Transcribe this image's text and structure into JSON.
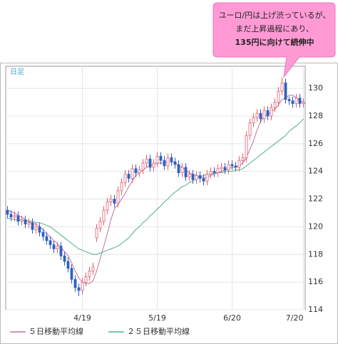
{
  "chart_data": {
    "type": "candlestick",
    "period_label": "日足",
    "annotation": [
      "ユーロ/円は上げ渋っているが、",
      "まだ上昇過程にあり、",
      "135円に向けて続伸中"
    ],
    "categories": [
      null,
      null,
      null,
      null,
      null,
      null,
      null,
      null,
      null,
      null,
      null,
      null,
      null,
      null,
      null,
      null,
      null,
      null,
      null,
      null,
      null,
      "4/19",
      null,
      null,
      null,
      null,
      null,
      null,
      null,
      null,
      null,
      null,
      null,
      null,
      null,
      null,
      null,
      null,
      null,
      null,
      null,
      null,
      "5/19",
      null,
      null,
      null,
      null,
      null,
      null,
      null,
      null,
      null,
      null,
      null,
      null,
      null,
      null,
      null,
      null,
      null,
      null,
      null,
      null,
      "6/20",
      null,
      null,
      null,
      null,
      null,
      null,
      null,
      null,
      null,
      null,
      null,
      null,
      null,
      null,
      null,
      null,
      null,
      null,
      null,
      "7/20"
    ],
    "open": [
      121.2,
      120.9,
      120.7,
      120.8,
      120.4,
      120.5,
      120.2,
      120.3,
      119.8,
      120.0,
      119.6,
      119.3,
      119.0,
      118.7,
      118.4,
      118.6,
      117.9,
      117.5,
      117.0,
      116.2,
      115.6,
      115.4,
      116.0,
      116.4,
      116.8,
      119.2,
      119.9,
      120.4,
      121.2,
      121.8,
      122.0,
      121.7,
      122.6,
      123.2,
      123.8,
      123.5,
      124.2,
      123.9,
      124.1,
      124.6,
      124.9,
      124.3,
      124.6,
      125.1,
      124.8,
      124.4,
      125.0,
      124.7,
      124.5,
      123.9,
      124.3,
      123.6,
      123.8,
      123.4,
      123.7,
      123.5,
      123.3,
      123.8,
      124.0,
      123.9,
      124.2,
      124.3,
      124.1,
      124.5,
      124.4,
      124.3,
      124.8,
      125.0,
      126.6,
      127.5,
      127.9,
      128.2,
      127.8,
      128.4,
      128.0,
      128.6,
      129.0,
      129.8,
      130.4,
      129.2,
      129.1,
      128.9,
      129.3,
      128.9
    ],
    "high": [
      121.5,
      121.2,
      121.1,
      121.1,
      120.8,
      120.8,
      120.6,
      120.6,
      120.3,
      120.3,
      119.9,
      119.6,
      119.3,
      119.0,
      118.9,
      118.9,
      118.2,
      117.8,
      117.3,
      116.5,
      115.9,
      116.3,
      116.7,
      117.1,
      117.4,
      120.2,
      120.7,
      121.5,
      122.1,
      122.3,
      122.3,
      122.9,
      123.5,
      124.1,
      124.1,
      124.5,
      124.5,
      124.4,
      124.9,
      125.2,
      125.2,
      124.9,
      125.4,
      125.4,
      125.1,
      125.3,
      125.3,
      125.0,
      124.8,
      124.6,
      124.6,
      124.1,
      124.1,
      124.0,
      124.0,
      123.8,
      124.1,
      124.3,
      124.3,
      124.5,
      124.6,
      124.6,
      124.8,
      124.8,
      124.7,
      125.1,
      125.3,
      126.9,
      127.8,
      128.2,
      128.5,
      128.5,
      128.7,
      128.7,
      128.9,
      129.3,
      130.1,
      130.8,
      130.7,
      129.4,
      129.4,
      129.6,
      129.6,
      129.3
    ],
    "low": [
      120.6,
      120.4,
      120.4,
      120.1,
      120.1,
      119.9,
      119.9,
      119.5,
      119.5,
      119.3,
      119.0,
      118.7,
      118.4,
      118.1,
      118.1,
      117.6,
      117.2,
      116.7,
      115.9,
      115.3,
      115.0,
      115.1,
      115.7,
      116.1,
      116.5,
      118.9,
      119.6,
      120.1,
      120.9,
      121.5,
      121.4,
      121.4,
      122.3,
      122.9,
      123.2,
      123.2,
      123.6,
      123.6,
      123.8,
      124.3,
      124.0,
      124.0,
      124.3,
      124.5,
      124.1,
      124.1,
      124.4,
      124.2,
      123.6,
      123.6,
      123.3,
      123.3,
      123.1,
      123.1,
      123.2,
      123.0,
      123.0,
      123.5,
      123.6,
      123.6,
      123.9,
      123.8,
      123.8,
      124.1,
      124.0,
      124.0,
      124.5,
      124.7,
      126.3,
      127.2,
      127.6,
      127.5,
      127.5,
      127.7,
      127.7,
      128.3,
      128.7,
      129.5,
      128.9,
      128.8,
      128.6,
      128.6,
      128.6,
      128.6
    ],
    "close": [
      120.9,
      120.7,
      120.8,
      120.4,
      120.5,
      120.2,
      120.3,
      119.8,
      120.0,
      119.6,
      119.3,
      119.0,
      118.7,
      118.4,
      118.6,
      117.9,
      117.5,
      117.0,
      116.2,
      115.6,
      115.4,
      116.0,
      116.4,
      116.8,
      117.1,
      119.9,
      120.4,
      121.2,
      121.8,
      122.0,
      121.7,
      122.6,
      123.2,
      123.8,
      123.5,
      124.2,
      123.9,
      124.1,
      124.6,
      124.9,
      124.3,
      124.6,
      125.1,
      124.8,
      124.4,
      125.0,
      124.7,
      124.5,
      123.9,
      124.3,
      123.6,
      123.8,
      123.4,
      123.7,
      123.5,
      123.3,
      123.8,
      124.0,
      123.9,
      124.2,
      124.3,
      124.1,
      124.5,
      124.4,
      124.3,
      124.8,
      125.0,
      126.6,
      127.5,
      127.9,
      128.2,
      127.8,
      128.4,
      128.0,
      128.6,
      129.0,
      129.8,
      130.4,
      129.2,
      129.1,
      128.9,
      129.3,
      128.9,
      129.0
    ],
    "up_color": "#e06070",
    "down_color": "#3060c0",
    "series": [
      {
        "name": "５日移動平均線",
        "color": "#c070a0",
        "values": [
          121.2,
          121.1,
          121.0,
          120.8,
          120.7,
          120.5,
          120.4,
          120.2,
          120.2,
          120.0,
          119.8,
          119.5,
          119.3,
          119.0,
          118.8,
          118.5,
          118.2,
          117.9,
          117.4,
          116.8,
          116.3,
          116.0,
          115.9,
          115.9,
          116.1,
          116.8,
          117.7,
          118.6,
          119.5,
          120.5,
          121.3,
          121.6,
          122.0,
          122.4,
          122.9,
          123.3,
          123.7,
          123.9,
          124.1,
          124.3,
          124.4,
          124.5,
          124.6,
          124.6,
          124.6,
          124.7,
          124.7,
          124.6,
          124.4,
          124.3,
          124.1,
          123.9,
          123.8,
          123.7,
          123.6,
          123.5,
          123.6,
          123.7,
          123.8,
          123.9,
          124.0,
          124.1,
          124.2,
          124.3,
          124.3,
          124.4,
          124.6,
          125.0,
          125.6,
          126.2,
          127.0,
          127.6,
          128.0,
          128.1,
          128.3,
          128.5,
          128.8,
          129.2,
          129.3,
          129.5,
          129.5,
          129.3,
          129.1,
          129.0
        ]
      },
      {
        "name": "２５日移動平均線",
        "color": "#50b080",
        "values": [
          120.6,
          120.6,
          120.5,
          120.5,
          120.5,
          120.4,
          120.4,
          120.4,
          120.3,
          120.3,
          120.2,
          120.1,
          120.0,
          119.8,
          119.6,
          119.4,
          119.2,
          119.0,
          118.8,
          118.6,
          118.4,
          118.3,
          118.2,
          118.1,
          118.0,
          118.0,
          118.1,
          118.2,
          118.3,
          118.4,
          118.5,
          118.6,
          118.8,
          119.0,
          119.2,
          119.5,
          119.8,
          120.0,
          120.3,
          120.5,
          120.8,
          121.0,
          121.3,
          121.5,
          121.8,
          122.0,
          122.3,
          122.5,
          122.7,
          122.9,
          123.0,
          123.2,
          123.3,
          123.5,
          123.6,
          123.7,
          123.8,
          123.8,
          123.9,
          123.9,
          123.9,
          124.0,
          124.0,
          124.0,
          124.1,
          124.1,
          124.2,
          124.4,
          124.6,
          124.8,
          125.0,
          125.2,
          125.4,
          125.6,
          125.8,
          126.0,
          126.2,
          126.4,
          126.6,
          126.9,
          127.1,
          127.3,
          127.5,
          127.8
        ]
      }
    ],
    "ylim": [
      114,
      131.6
    ],
    "yticks": [
      114,
      116,
      118,
      120,
      122,
      124,
      126,
      128,
      130
    ],
    "grid": true
  }
}
